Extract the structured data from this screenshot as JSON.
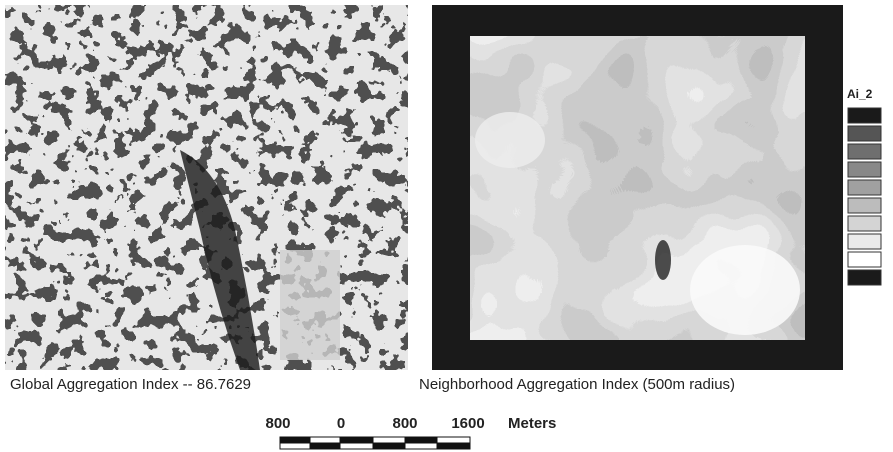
{
  "left_map": {
    "caption": "Global Aggregation Index  -- 86.7629"
  },
  "right_map": {
    "caption": "Neighborhood Aggregation Index (500m radius)"
  },
  "legend": {
    "title": "Ai_2"
  },
  "scale_bar": {
    "labels": [
      "800",
      "0",
      "800",
      "1600"
    ],
    "unit": "Meters"
  }
}
